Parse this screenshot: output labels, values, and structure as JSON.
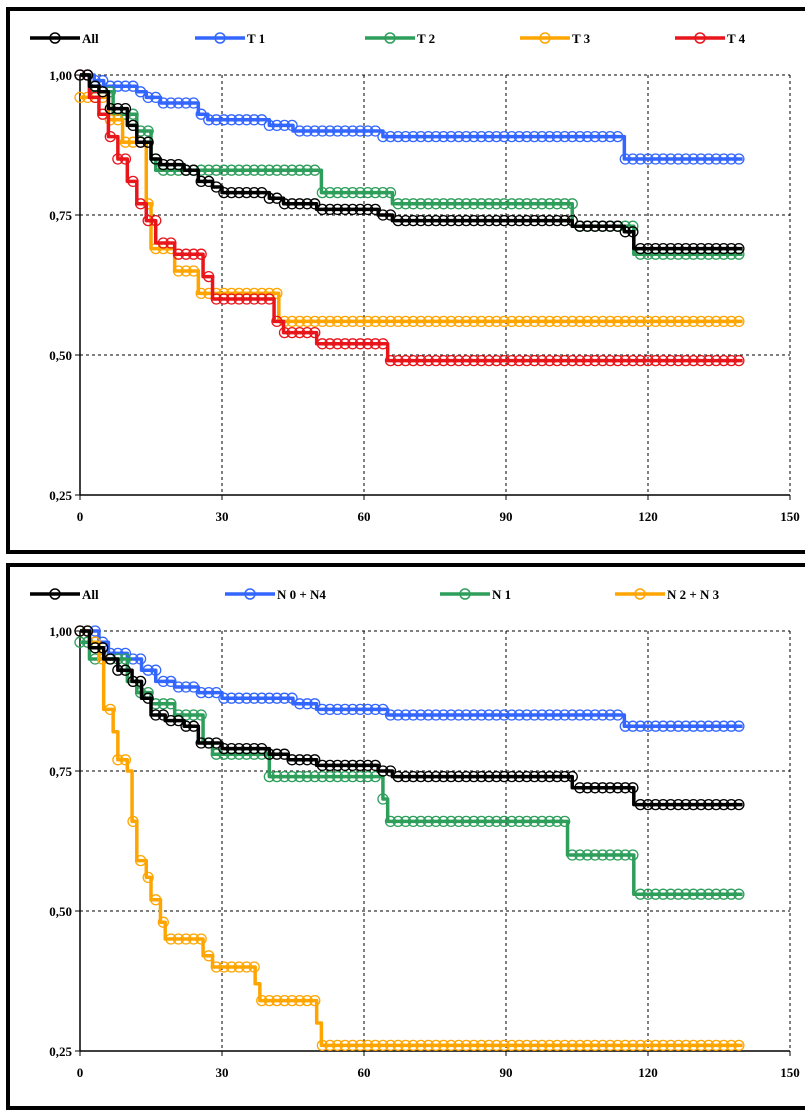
{
  "chart_data": [
    {
      "type": "line",
      "xlim": [
        0,
        150
      ],
      "ylim": [
        0.25,
        1.0
      ],
      "xticks": [
        "0",
        "30",
        "60",
        "90",
        "120",
        "150"
      ],
      "yticks": [
        "1,00",
        "0,75",
        "0,50",
        "0,25"
      ],
      "grid": true,
      "legend_position": "top",
      "series": [
        {
          "name": "All",
          "color": "#000000",
          "points": [
            [
              0,
              1.0
            ],
            [
              2,
              0.98
            ],
            [
              4,
              0.97
            ],
            [
              6,
              0.94
            ],
            [
              10,
              0.91
            ],
            [
              12,
              0.88
            ],
            [
              15,
              0.85
            ],
            [
              17,
              0.84
            ],
            [
              22,
              0.83
            ],
            [
              25,
              0.81
            ],
            [
              28,
              0.8
            ],
            [
              30,
              0.79
            ],
            [
              40,
              0.78
            ],
            [
              43,
              0.77
            ],
            [
              50,
              0.76
            ],
            [
              55,
              0.76
            ],
            [
              63,
              0.75
            ],
            [
              66,
              0.74
            ],
            [
              80,
              0.74
            ],
            [
              103,
              0.74
            ],
            [
              104,
              0.73
            ],
            [
              115,
              0.72
            ],
            [
              117,
              0.69
            ],
            [
              140,
              0.69
            ]
          ]
        },
        {
          "name": "T 1",
          "color": "#3366FF",
          "points": [
            [
              0,
              1.0
            ],
            [
              3,
              0.99
            ],
            [
              5,
              0.98
            ],
            [
              12,
              0.97
            ],
            [
              14,
              0.96
            ],
            [
              17,
              0.95
            ],
            [
              25,
              0.93
            ],
            [
              27,
              0.92
            ],
            [
              40,
              0.91
            ],
            [
              45,
              0.9
            ],
            [
              62,
              0.9
            ],
            [
              64,
              0.89
            ],
            [
              113,
              0.89
            ],
            [
              115,
              0.85
            ],
            [
              140,
              0.85
            ]
          ]
        },
        {
          "name": "T 2",
          "color": "#2E9E5B",
          "points": [
            [
              0,
              1.0
            ],
            [
              2,
              0.97
            ],
            [
              7,
              0.93
            ],
            [
              12,
              0.9
            ],
            [
              15,
              0.85
            ],
            [
              16,
              0.83
            ],
            [
              49,
              0.83
            ],
            [
              51,
              0.79
            ],
            [
              64,
              0.79
            ],
            [
              66,
              0.77
            ],
            [
              102,
              0.77
            ],
            [
              104,
              0.73
            ],
            [
              115,
              0.73
            ],
            [
              117,
              0.68
            ],
            [
              140,
              0.68
            ]
          ]
        },
        {
          "name": "T 3",
          "color": "#FFA500",
          "points": [
            [
              0,
              0.96
            ],
            [
              4,
              0.96
            ],
            [
              6,
              0.92
            ],
            [
              9,
              0.88
            ],
            [
              12,
              0.88
            ],
            [
              14,
              0.77
            ],
            [
              15,
              0.69
            ],
            [
              18,
              0.69
            ],
            [
              20,
              0.65
            ],
            [
              23,
              0.65
            ],
            [
              25,
              0.61
            ],
            [
              28,
              0.61
            ],
            [
              40,
              0.61
            ],
            [
              42,
              0.56
            ],
            [
              140,
              0.56
            ]
          ]
        },
        {
          "name": "T 4",
          "color": "#E8151B",
          "points": [
            [
              0,
              1.0
            ],
            [
              2,
              0.96
            ],
            [
              4,
              0.93
            ],
            [
              6,
              0.89
            ],
            [
              8,
              0.85
            ],
            [
              10,
              0.81
            ],
            [
              12,
              0.77
            ],
            [
              14,
              0.74
            ],
            [
              16,
              0.7
            ],
            [
              20,
              0.68
            ],
            [
              26,
              0.64
            ],
            [
              28,
              0.6
            ],
            [
              39,
              0.6
            ],
            [
              41,
              0.56
            ],
            [
              43,
              0.54
            ],
            [
              48,
              0.54
            ],
            [
              50,
              0.52
            ],
            [
              63,
              0.52
            ],
            [
              65,
              0.49
            ],
            [
              140,
              0.49
            ]
          ]
        }
      ]
    },
    {
      "type": "line",
      "xlim": [
        0,
        150
      ],
      "ylim": [
        0.25,
        1.0
      ],
      "xticks": [
        "0",
        "30",
        "60",
        "90",
        "120",
        "150"
      ],
      "yticks": [
        "1,00",
        "0,75",
        "0,50",
        "0,25"
      ],
      "grid": true,
      "legend_position": "top",
      "series": [
        {
          "name": "All",
          "color": "#000000",
          "points": [
            [
              0,
              1.0
            ],
            [
              2,
              0.97
            ],
            [
              5,
              0.95
            ],
            [
              8,
              0.93
            ],
            [
              11,
              0.91
            ],
            [
              13,
              0.88
            ],
            [
              15,
              0.85
            ],
            [
              18,
              0.84
            ],
            [
              22,
              0.83
            ],
            [
              25,
              0.8
            ],
            [
              30,
              0.79
            ],
            [
              38,
              0.79
            ],
            [
              40,
              0.78
            ],
            [
              44,
              0.77
            ],
            [
              50,
              0.76
            ],
            [
              63,
              0.75
            ],
            [
              66,
              0.74
            ],
            [
              103,
              0.74
            ],
            [
              104,
              0.72
            ],
            [
              115,
              0.72
            ],
            [
              117,
              0.69
            ],
            [
              140,
              0.69
            ]
          ]
        },
        {
          "name": "N 0 + N4",
          "color": "#3366FF",
          "points": [
            [
              0,
              1.0
            ],
            [
              4,
              0.98
            ],
            [
              6,
              0.96
            ],
            [
              10,
              0.95
            ],
            [
              13,
              0.93
            ],
            [
              16,
              0.91
            ],
            [
              20,
              0.9
            ],
            [
              25,
              0.89
            ],
            [
              30,
              0.88
            ],
            [
              45,
              0.87
            ],
            [
              50,
              0.86
            ],
            [
              60,
              0.86
            ],
            [
              65,
              0.85
            ],
            [
              114,
              0.85
            ],
            [
              115,
              0.83
            ],
            [
              140,
              0.83
            ]
          ]
        },
        {
          "name": "N 1",
          "color": "#2E9E5B",
          "points": [
            [
              0,
              0.98
            ],
            [
              2,
              0.95
            ],
            [
              10,
              0.91
            ],
            [
              12,
              0.89
            ],
            [
              15,
              0.87
            ],
            [
              20,
              0.85
            ],
            [
              24,
              0.85
            ],
            [
              26,
              0.8
            ],
            [
              28,
              0.78
            ],
            [
              39,
              0.78
            ],
            [
              40,
              0.74
            ],
            [
              63,
              0.74
            ],
            [
              64,
              0.7
            ],
            [
              65,
              0.66
            ],
            [
              102,
              0.66
            ],
            [
              103,
              0.6
            ],
            [
              115,
              0.6
            ],
            [
              117,
              0.53
            ],
            [
              140,
              0.53
            ]
          ]
        },
        {
          "name": "N 2 + N 3",
          "color": "#FFA500",
          "points": [
            [
              0,
              1.0
            ],
            [
              2,
              0.98
            ],
            [
              4,
              0.95
            ],
            [
              5,
              0.86
            ],
            [
              7,
              0.82
            ],
            [
              8,
              0.77
            ],
            [
              10,
              0.75
            ],
            [
              11,
              0.66
            ],
            [
              12,
              0.59
            ],
            [
              14,
              0.56
            ],
            [
              15,
              0.52
            ],
            [
              17,
              0.48
            ],
            [
              18,
              0.45
            ],
            [
              25,
              0.45
            ],
            [
              26,
              0.42
            ],
            [
              28,
              0.4
            ],
            [
              35,
              0.4
            ],
            [
              37,
              0.37
            ],
            [
              38,
              0.34
            ],
            [
              49,
              0.34
            ],
            [
              50,
              0.3
            ],
            [
              51,
              0.26
            ],
            [
              140,
              0.26
            ]
          ]
        }
      ]
    }
  ]
}
